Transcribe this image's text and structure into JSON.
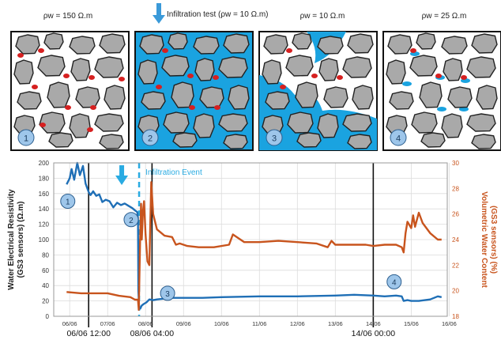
{
  "panels": [
    {
      "number": "1",
      "label": "ρw = 150 Ω.m",
      "water": "none"
    },
    {
      "number": "2",
      "label": "Infiltration test (ρw = 10 Ω.m)",
      "water": "full"
    },
    {
      "number": "3",
      "label": "ρw = 10 Ω.m",
      "water": "partial"
    },
    {
      "number": "4",
      "label": "ρw = 25 Ω.m",
      "water": "trace"
    }
  ],
  "colors": {
    "water": "#1aa3e0",
    "resistivity": "#1f6fb6",
    "water_content": "#c8541d",
    "event": "#29abe2",
    "grain": "#a9a9a9",
    "residual": "#d62020",
    "marker": "#9ec6ea"
  },
  "icons": [
    "down-arrow-icon"
  ],
  "chart_data": {
    "type": "line",
    "title": "",
    "ylabel_left": [
      "Water Electrical Resistivity",
      "(GS3 sensors) (Ω.m)"
    ],
    "ylabel_right": [
      "Volumetric Water Content",
      "(GS3 sensors) (%)"
    ],
    "ylim_left": [
      0,
      200
    ],
    "ylim_right": [
      18,
      30
    ],
    "yticks_left": [
      "0",
      "20",
      "40",
      "60",
      "80",
      "100",
      "120",
      "140",
      "160",
      "180",
      "200"
    ],
    "yticks_right": [
      "18",
      "20",
      "22",
      "24",
      "26",
      "28",
      "30"
    ],
    "xlim": [
      0.58,
      10.95
    ],
    "xticks": [
      {
        "x": 1,
        "label": "06/06"
      },
      {
        "x": 2,
        "label": "07/06"
      },
      {
        "x": 3,
        "label": "08/06"
      },
      {
        "x": 4,
        "label": "09/06"
      },
      {
        "x": 5,
        "label": "10/06"
      },
      {
        "x": 6,
        "label": "11/06"
      },
      {
        "x": 7,
        "label": "12/06"
      },
      {
        "x": 8,
        "label": "13/06"
      },
      {
        "x": 9,
        "label": "14/06"
      },
      {
        "x": 10,
        "label": "15/06"
      },
      {
        "x": 11,
        "label": "16/06"
      }
    ],
    "grid": true,
    "event": {
      "x": 2.83,
      "label": "Infiltration Event"
    },
    "vlines": [
      {
        "x": 1.5,
        "label": "06/06 12:00"
      },
      {
        "x": 3.17,
        "label": "08/06 04:00"
      },
      {
        "x": 9.0,
        "label": "14/06 00:00"
      }
    ],
    "markers": [
      {
        "label": "1",
        "x": 0.95,
        "y": 150
      },
      {
        "label": "2",
        "x": 2.62,
        "y": 126
      },
      {
        "label": "3",
        "x": 3.58,
        "y": 30
      },
      {
        "label": "4",
        "x": 9.55,
        "y": 45
      }
    ],
    "series": [
      {
        "axis": "left",
        "x": [
          0.92,
          1.0,
          1.05,
          1.12,
          1.2,
          1.27,
          1.35,
          1.42,
          1.5,
          1.55,
          1.62,
          1.7,
          1.78,
          1.86,
          1.95,
          2.05,
          2.15,
          2.25,
          2.35,
          2.45,
          2.55,
          2.65,
          2.72,
          2.78,
          2.8,
          2.81,
          2.83,
          2.86,
          2.9,
          2.95,
          3.02,
          3.1,
          3.2,
          3.3,
          3.5,
          3.7,
          4.0,
          4.5,
          5.0,
          6.0,
          7.0,
          8.0,
          8.5,
          9.0,
          9.3,
          9.6,
          9.75,
          9.8,
          9.9,
          10.0,
          10.2,
          10.5,
          10.7,
          10.8
        ],
        "y": [
          172,
          180,
          192,
          178,
          200,
          184,
          196,
          173,
          162,
          158,
          163,
          157,
          159,
          149,
          152,
          150,
          142,
          148,
          145,
          147,
          144,
          141,
          138,
          136,
          128,
          33,
          12,
          10,
          14,
          16,
          18,
          22,
          21,
          22,
          23,
          24,
          24,
          24,
          25,
          26,
          26,
          27,
          28,
          27,
          26,
          27,
          26,
          20,
          21,
          20,
          20,
          22,
          26,
          25
        ]
      },
      {
        "axis": "right",
        "x": [
          0.92,
          1.3,
          1.6,
          2.0,
          2.3,
          2.6,
          2.72,
          2.8,
          2.82,
          2.86,
          2.88,
          2.9,
          2.93,
          2.96,
          3.0,
          3.05,
          3.1,
          3.15,
          3.2,
          3.3,
          3.5,
          3.7,
          3.8,
          3.9,
          4.1,
          4.4,
          4.8,
          5.2,
          5.3,
          5.6,
          6.0,
          6.5,
          7.0,
          7.5,
          7.8,
          7.9,
          8.0,
          8.2,
          8.5,
          8.8,
          9.0,
          9.3,
          9.6,
          9.75,
          9.8,
          9.85,
          9.9,
          10.0,
          10.05,
          10.1,
          10.2,
          10.3,
          10.5,
          10.7,
          10.8
        ],
        "y": [
          19.9,
          19.8,
          19.8,
          19.8,
          19.6,
          19.5,
          19.3,
          19.3,
          18.5,
          24.5,
          26.8,
          24.0,
          26.2,
          27.0,
          24.4,
          22.3,
          22.0,
          28.5,
          26.0,
          24.8,
          24.3,
          24.2,
          23.6,
          23.7,
          23.5,
          23.4,
          23.4,
          23.6,
          24.4,
          23.8,
          23.8,
          23.9,
          23.8,
          23.7,
          23.4,
          23.9,
          23.6,
          23.6,
          23.6,
          23.6,
          23.5,
          23.6,
          23.6,
          23.4,
          23.0,
          24.5,
          25.4,
          24.9,
          25.9,
          25.0,
          26.1,
          25.3,
          24.5,
          24.0,
          24.0
        ]
      }
    ]
  }
}
